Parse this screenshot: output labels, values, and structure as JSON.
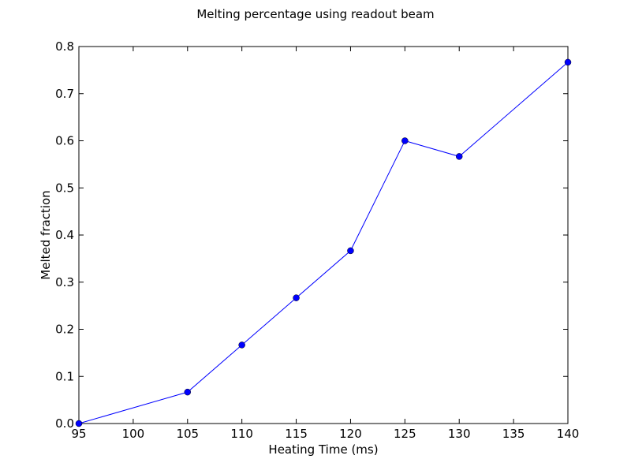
{
  "chart_data": {
    "type": "line",
    "title": "Melting percentage using readout beam",
    "xlabel": "Heating Time (ms)",
    "ylabel": "Melted fraction",
    "xlim": [
      95,
      140
    ],
    "ylim": [
      0.0,
      0.8
    ],
    "x_ticks": [
      "95",
      "100",
      "105",
      "110",
      "115",
      "120",
      "125",
      "130",
      "135",
      "140"
    ],
    "y_ticks": [
      "0.0",
      "0.1",
      "0.2",
      "0.3",
      "0.4",
      "0.5",
      "0.6",
      "0.7",
      "0.8"
    ],
    "grid": false,
    "legend": "none",
    "series": [
      {
        "color": "#0000ff",
        "marker": "circle",
        "x": [
          95,
          105,
          110,
          115,
          120,
          125,
          130,
          140
        ],
        "y": [
          0.0,
          0.0667,
          0.1667,
          0.2667,
          0.3667,
          0.6,
          0.5667,
          0.7667
        ]
      }
    ]
  }
}
